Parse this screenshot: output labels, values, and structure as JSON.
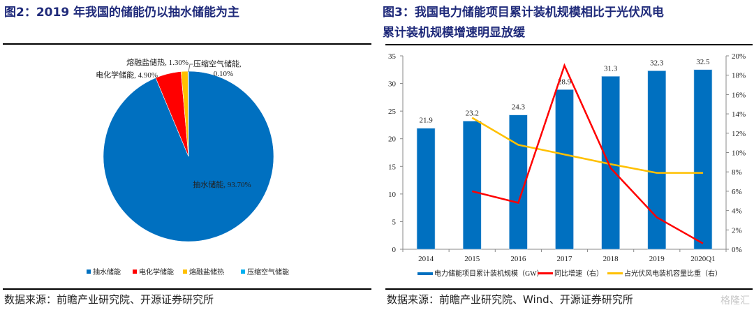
{
  "left_panel": {
    "title": "图2：2019 年我国的储能仍以抽水储能为主",
    "source": "数据来源：前瞻产业研究院、开源证券研究所"
  },
  "right_panel": {
    "title_line1": "图3：我国电力储能项目累计装机规模相比于光伏风电",
    "title_line2": "累计装机规模增速明显放缓",
    "source": "数据来源：前瞻产业研究院、Wind、开源证券研究所"
  },
  "watermark": "格隆汇",
  "chart_data": [
    {
      "type": "pie",
      "title": "2019 年我国的储能仍以抽水储能为主",
      "slices": [
        {
          "name": "抽水储能",
          "value": 93.7,
          "label": "抽水储能, 93.70%",
          "color": "#0070C0"
        },
        {
          "name": "电化学储能",
          "value": 4.9,
          "label": "电化学储能, 4.90%",
          "color": "#FF0000"
        },
        {
          "name": "熔融盐储热",
          "value": 1.3,
          "label": "熔融盐储热, 1.30%",
          "color": "#FFC000"
        },
        {
          "name": "压缩空气储能",
          "value": 0.1,
          "label_line1": "压缩空气储能,",
          "label_line2": "0.10%",
          "color": "#00B0F0"
        }
      ],
      "legend": [
        "抽水储能",
        "电化学储能",
        "熔融盐储热",
        "压缩空气储能"
      ],
      "legend_position": "bottom"
    },
    {
      "type": "bar",
      "title": "我国电力储能项目累计装机规模相比于光伏风电累计装机规模增速明显放缓",
      "categories": [
        "2014",
        "2015",
        "2016",
        "2017",
        "2018",
        "2019",
        "2020Q1"
      ],
      "bars": {
        "name": "电力储能项目累计装机规模（GW）",
        "values": [
          21.9,
          23.2,
          24.3,
          28.9,
          31.3,
          32.3,
          32.5
        ],
        "labels": [
          "21.9",
          "23.2",
          "24.3",
          "28.9",
          "31.3",
          "32.3",
          "32.5"
        ],
        "color": "#0070C0"
      },
      "lines": [
        {
          "name": "同比增速（右）",
          "values": [
            null,
            6.0,
            4.8,
            19.0,
            8.4,
            3.3,
            0.6
          ],
          "color": "#FF0000"
        },
        {
          "name": "占光伏风电装机容量比重（右）",
          "values": [
            null,
            13.6,
            10.8,
            9.8,
            8.8,
            7.9,
            7.9
          ],
          "color": "#FFC000"
        }
      ],
      "y_left": {
        "min": 0,
        "max": 35,
        "ticks": [
          "0",
          "5",
          "10",
          "15",
          "20",
          "25",
          "30",
          "35"
        ]
      },
      "y_right": {
        "min": 0,
        "max": 20,
        "ticks": [
          "0%",
          "2%",
          "4%",
          "6%",
          "8%",
          "10%",
          "12%",
          "14%",
          "16%",
          "18%",
          "20%"
        ]
      },
      "legend": [
        "电力储能项目累计装机规模（GW）",
        "同比增速（右）",
        "占光伏风电装机容量比重（右）"
      ],
      "legend_position": "bottom",
      "grid": false
    }
  ]
}
